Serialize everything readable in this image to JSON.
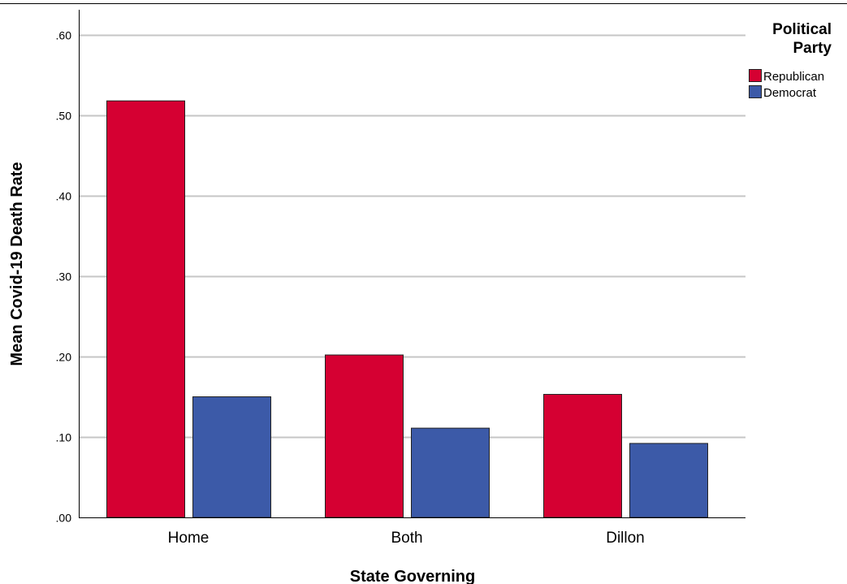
{
  "chart_data": {
    "type": "bar",
    "title": "",
    "xlabel": "State Governing",
    "ylabel": "Mean Covid-19 Death Rate",
    "categories": [
      "Home",
      "Both",
      "Dillon"
    ],
    "series": [
      {
        "name": "Republican",
        "color": "#D50032",
        "values": [
          0.518,
          0.202,
          0.153
        ]
      },
      {
        "name": "Democrat",
        "color": "#3C5AA8",
        "values": [
          0.15,
          0.111,
          0.092
        ]
      }
    ],
    "ylim": [
      0,
      0.6
    ],
    "yticks": [
      0.0,
      0.1,
      0.2,
      0.3,
      0.4,
      0.5,
      0.6
    ],
    "ytick_labels": [
      ".00",
      ".10",
      ".20",
      ".30",
      ".40",
      ".50",
      ".60"
    ],
    "grid": true,
    "legend": {
      "title_line1": "Political",
      "title_line2": "Party",
      "placement": "right"
    }
  }
}
